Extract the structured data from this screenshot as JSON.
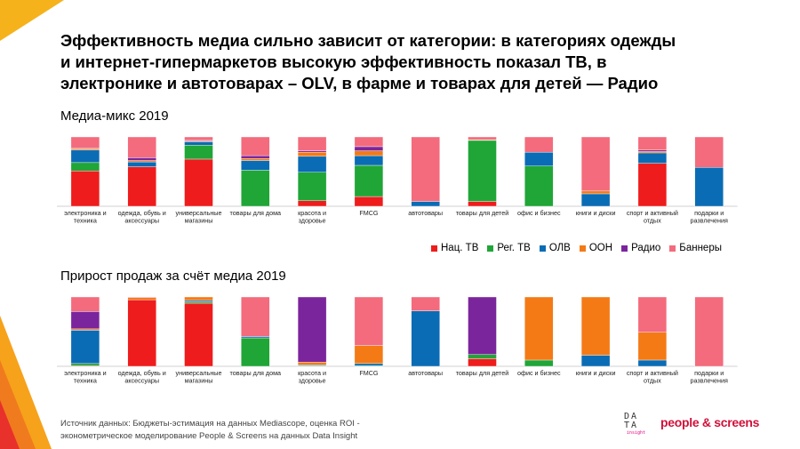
{
  "headline": {
    "line1": "Эффективность медиа сильно зависит от категории: в категориях одежды",
    "line2": "и интернет-гипермаркетов высокую эффективность показал ТВ,  в",
    "line3": "электронике и автотоварах – OLV, в фарме и товарах для детей — Радио"
  },
  "colors": {
    "nat_tv": "#ee1c1c",
    "reg_tv": "#1fa637",
    "olv": "#0a6cb4",
    "ooh": "#f47a16",
    "radio": "#7b259c",
    "banners": "#f36b7c"
  },
  "legend": [
    {
      "key": "nat_tv",
      "label": "Нац. ТВ"
    },
    {
      "key": "reg_tv",
      "label": "Рег. ТВ"
    },
    {
      "key": "olv",
      "label": "ОЛВ"
    },
    {
      "key": "ooh",
      "label": "ООН"
    },
    {
      "key": "radio",
      "label": "Радио"
    },
    {
      "key": "banners",
      "label": "Баннеры"
    }
  ],
  "chart_data": [
    {
      "type": "bar",
      "stacked": true,
      "percent": true,
      "title": "Медиа-микс 2019",
      "legend_position": "bottom-right",
      "categories": [
        [
          "электроника и",
          "техника"
        ],
        [
          "одежда, обувь и",
          "аксессуары"
        ],
        [
          "универсальные",
          "магазины"
        ],
        [
          "товары для дома"
        ],
        [
          "красота и",
          "здоровье"
        ],
        [
          "FMCG"
        ],
        [
          "автотовары"
        ],
        [
          "товары для детей"
        ],
        [
          "офис и бизнес"
        ],
        [
          "книги и диски"
        ],
        [
          "спорт и активный",
          "отдых"
        ],
        [
          "подарки и",
          "развлечения"
        ]
      ],
      "series": [
        {
          "key": "nat_tv",
          "values": [
            51,
            57,
            68,
            0,
            8,
            14,
            0,
            7,
            0,
            0,
            62,
            0
          ]
        },
        {
          "key": "reg_tv",
          "values": [
            12,
            0,
            20,
            52,
            41,
            45,
            0,
            88,
            58,
            0,
            0,
            0
          ]
        },
        {
          "key": "olv",
          "values": [
            18,
            7,
            5,
            14,
            23,
            14,
            7,
            0,
            20,
            18,
            15,
            56
          ]
        },
        {
          "key": "ooh",
          "values": [
            2,
            2,
            1,
            3,
            6,
            7,
            0,
            1,
            0,
            4,
            2,
            0
          ]
        },
        {
          "key": "radio",
          "values": [
            1,
            4,
            1,
            4,
            2,
            6,
            0,
            0,
            0,
            0,
            2,
            0
          ]
        },
        {
          "key": "banners",
          "values": [
            16,
            30,
            5,
            27,
            20,
            14,
            93,
            4,
            22,
            78,
            19,
            44
          ]
        }
      ],
      "ylim": [
        0,
        100
      ]
    },
    {
      "type": "bar",
      "stacked": true,
      "percent": true,
      "title": "Прирост продаж за счёт медиа 2019",
      "categories": [
        [
          "электроника и",
          "техника"
        ],
        [
          "одежда, обувь и",
          "аксессуары"
        ],
        [
          "универсальные",
          "магазины"
        ],
        [
          "товары для дома"
        ],
        [
          "красота и",
          "здоровье"
        ],
        [
          "FMCG"
        ],
        [
          "автотовары"
        ],
        [
          "товары для детей"
        ],
        [
          "офис и бизнес"
        ],
        [
          "книги и диски"
        ],
        [
          "спорт и активный",
          "отдых"
        ],
        [
          "подарки и",
          "развлечения"
        ]
      ],
      "series": [
        {
          "key": "nat_tv",
          "values": [
            1,
            96,
            91,
            0,
            0,
            0,
            0,
            11,
            0,
            0,
            0,
            0
          ]
        },
        {
          "key": "reg_tv",
          "values": [
            3,
            0,
            2,
            41,
            1,
            1,
            0,
            6,
            9,
            0,
            0,
            0
          ]
        },
        {
          "key": "olv",
          "values": [
            48,
            0,
            2,
            2,
            1,
            3,
            80,
            0,
            0,
            16,
            9,
            0
          ]
        },
        {
          "key": "ooh",
          "values": [
            2,
            3,
            5,
            0,
            4,
            26,
            0,
            0,
            91,
            84,
            40,
            0
          ]
        },
        {
          "key": "radio",
          "values": [
            25,
            0,
            0,
            0,
            94,
            0,
            0,
            83,
            0,
            0,
            0,
            0
          ]
        },
        {
          "key": "banners",
          "values": [
            21,
            1,
            0,
            57,
            0,
            70,
            20,
            0,
            0,
            0,
            51,
            100
          ]
        }
      ],
      "ylim": [
        0,
        100
      ]
    }
  ],
  "footer": {
    "source_line1": "Источник данных: Бюджеты-эстимация на данных Mediascope, оценка ROI -",
    "source_line2": "эконометрическое моделирование People & Screens на данных Data Insight"
  },
  "logos": {
    "data_line1": "DA",
    "data_line2": "TA",
    "data_sub": "insight",
    "people_screens": "people & screens"
  }
}
